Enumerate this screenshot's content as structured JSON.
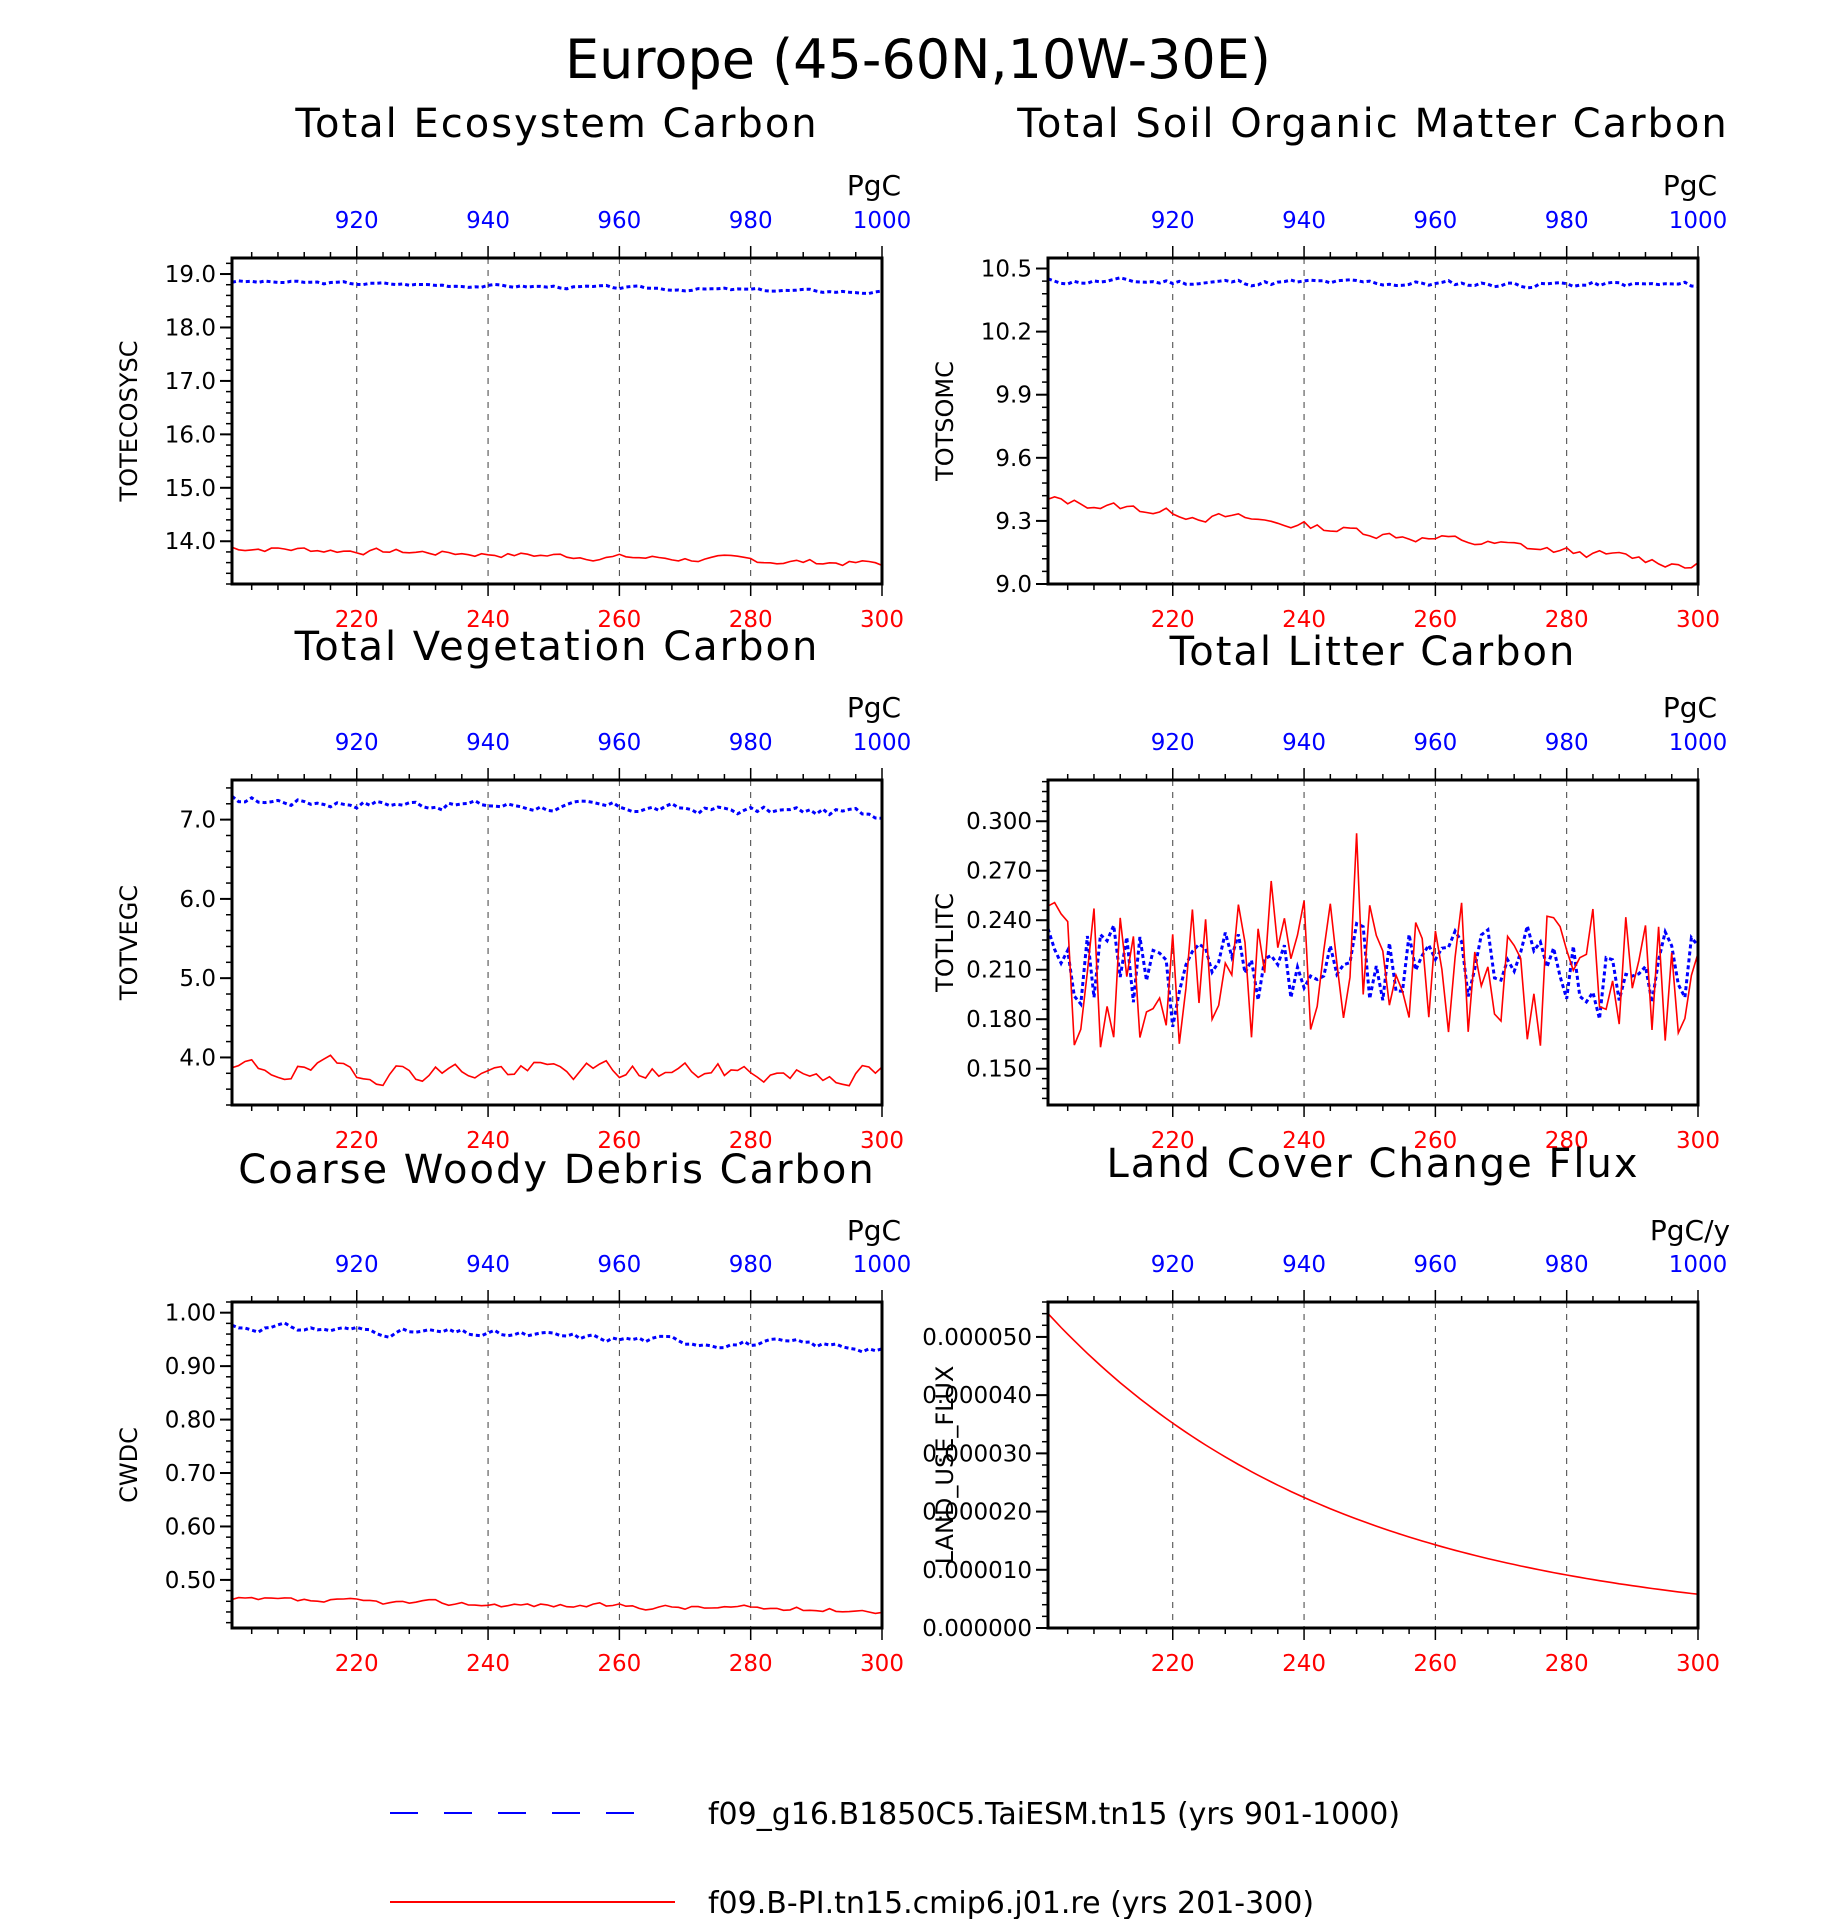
{
  "suptitle": "Europe (45-60N,10W-30E)",
  "colors": {
    "series_a": "#0000ff",
    "series_b": "#ff0000"
  },
  "legend": [
    {
      "label": "f09_g16.B1850C5.TaiESM.tn15 (yrs 901-1000)",
      "style": "dashed",
      "color": "#0000ff"
    },
    {
      "label": "f09.B-PI.tn15.cmip6.j01.re (yrs 201-300)",
      "style": "solid",
      "color": "#ff0000"
    }
  ],
  "chart_data": [
    {
      "type": "line",
      "title": "Total Ecosystem Carbon",
      "ylabel": "TOTECOSYSC",
      "unit": "PgC",
      "ylim": [
        13.2,
        19.3
      ],
      "yticks": [
        19.0,
        18.0,
        17.0,
        16.0,
        15.0,
        14.0
      ],
      "ytick_labels": [
        "19.0",
        "18.0",
        "17.0",
        "16.0",
        "15.0",
        "14.0"
      ],
      "bottom_xlim": [
        201,
        300
      ],
      "bottom_xticks": [
        220,
        240,
        260,
        280,
        300
      ],
      "top_xlim": [
        901,
        1000
      ],
      "top_xticks": [
        920,
        940,
        960,
        980,
        1000
      ],
      "series": [
        {
          "name": "f09_g16.B1850C5.TaiESM.tn15 (yrs 901-1000)",
          "axis": "top",
          "style": "dashed",
          "gen": {
            "kind": "trend",
            "start": 18.86,
            "end": 18.66,
            "amp": 0.06,
            "seed": 3
          }
        },
        {
          "name": "f09.B-PI.tn15.cmip6.j01.re (yrs 201-300)",
          "axis": "bottom",
          "style": "solid",
          "gen": {
            "kind": "trend",
            "start": 13.88,
            "end": 13.58,
            "amp": 0.12,
            "seed": 7
          }
        }
      ]
    },
    {
      "type": "line",
      "title": "Total Soil Organic Matter Carbon",
      "ylabel": "TOTSOMC",
      "unit": "PgC",
      "ylim": [
        9.0,
        10.55
      ],
      "yticks": [
        10.5,
        10.2,
        9.9,
        9.6,
        9.3,
        9.0
      ],
      "ytick_labels": [
        "10.5",
        "10.2",
        "9.9",
        "9.6",
        "9.3",
        "9.0"
      ],
      "bottom_xlim": [
        201,
        300
      ],
      "bottom_xticks": [
        220,
        240,
        260,
        280,
        300
      ],
      "top_xlim": [
        901,
        1000
      ],
      "top_xticks": [
        920,
        940,
        960,
        980,
        1000
      ],
      "series": [
        {
          "name": "f09_g16.B1850C5.TaiESM.tn15 (yrs 901-1000)",
          "axis": "top",
          "style": "dashed",
          "gen": {
            "kind": "trend",
            "start": 10.44,
            "end": 10.42,
            "amp": 0.03,
            "seed": 11
          }
        },
        {
          "name": "f09.B-PI.tn15.cmip6.j01.re (yrs 201-300)",
          "axis": "bottom",
          "style": "solid",
          "gen": {
            "kind": "trend",
            "start": 9.4,
            "end": 9.09,
            "amp": 0.045,
            "seed": 13
          }
        }
      ]
    },
    {
      "type": "line",
      "title": "Total Vegetation Carbon",
      "ylabel": "TOTVEGC",
      "unit": "PgC",
      "ylim": [
        3.4,
        7.5
      ],
      "yticks": [
        7.0,
        6.0,
        5.0,
        4.0
      ],
      "ytick_labels": [
        "7.0",
        "6.0",
        "5.0",
        "4.0"
      ],
      "bottom_xlim": [
        201,
        300
      ],
      "bottom_xticks": [
        220,
        240,
        260,
        280,
        300
      ],
      "top_xlim": [
        901,
        1000
      ],
      "top_xticks": [
        920,
        940,
        960,
        980,
        1000
      ],
      "series": [
        {
          "name": "f09_g16.B1850C5.TaiESM.tn15 (yrs 901-1000)",
          "axis": "top",
          "style": "dashed",
          "gen": {
            "kind": "trend",
            "start": 7.25,
            "end": 7.08,
            "amp": 0.12,
            "seed": 17
          }
        },
        {
          "name": "f09.B-PI.tn15.cmip6.j01.re (yrs 201-300)",
          "axis": "bottom",
          "style": "solid",
          "gen": {
            "kind": "trend",
            "start": 3.85,
            "end": 3.8,
            "amp": 0.25,
            "seed": 19
          }
        }
      ]
    },
    {
      "type": "line",
      "title": "Total Litter Carbon",
      "ylabel": "TOTLITC",
      "unit": "PgC",
      "ylim": [
        0.128,
        0.325
      ],
      "yticks": [
        0.3,
        0.27,
        0.24,
        0.21,
        0.18,
        0.15
      ],
      "ytick_labels": [
        "0.300",
        "0.270",
        "0.240",
        "0.210",
        "0.180",
        "0.150"
      ],
      "bottom_xlim": [
        201,
        300
      ],
      "bottom_xticks": [
        220,
        240,
        260,
        280,
        300
      ],
      "top_xlim": [
        901,
        1000
      ],
      "top_xticks": [
        920,
        940,
        960,
        980,
        1000
      ],
      "series": [
        {
          "name": "f09_g16.B1850C5.TaiESM.tn15 (yrs 901-1000)",
          "axis": "top",
          "style": "dashed",
          "gen": {
            "kind": "noisy",
            "mean": 0.213,
            "amp": 0.028,
            "seed": 23
          }
        },
        {
          "name": "f09.B-PI.tn15.cmip6.j01.re (yrs 201-300)",
          "axis": "bottom",
          "style": "solid",
          "gen": {
            "kind": "noisy",
            "mean": 0.208,
            "amp": 0.05,
            "seed": 29
          }
        }
      ]
    },
    {
      "type": "line",
      "title": "Coarse Woody Debris Carbon",
      "ylabel": "CWDC",
      "unit": "PgC",
      "ylim": [
        0.41,
        1.02
      ],
      "yticks": [
        1.0,
        0.9,
        0.8,
        0.7,
        0.6,
        0.5
      ],
      "ytick_labels": [
        "1.00",
        "0.90",
        "0.80",
        "0.70",
        "0.60",
        "0.50"
      ],
      "bottom_xlim": [
        201,
        300
      ],
      "bottom_xticks": [
        220,
        240,
        260,
        280,
        300
      ],
      "top_xlim": [
        901,
        1000
      ],
      "top_xticks": [
        920,
        940,
        960,
        980,
        1000
      ],
      "series": [
        {
          "name": "f09_g16.B1850C5.TaiESM.tn15 (yrs 901-1000)",
          "axis": "top",
          "style": "dashed",
          "gen": {
            "kind": "trend",
            "start": 0.975,
            "end": 0.935,
            "amp": 0.015,
            "seed": 31
          }
        },
        {
          "name": "f09.B-PI.tn15.cmip6.j01.re (yrs 201-300)",
          "axis": "bottom",
          "style": "solid",
          "gen": {
            "kind": "trend",
            "start": 0.462,
            "end": 0.443,
            "amp": 0.01,
            "seed": 37
          }
        }
      ]
    },
    {
      "type": "line",
      "title": "Land Cover Change Flux",
      "ylabel": "LAND_USE_FLUX",
      "unit": "PgC/y",
      "ylim": [
        0.0,
        5.6e-05
      ],
      "yticks": [
        5e-05,
        4e-05,
        3e-05,
        2e-05,
        1e-05,
        0.0
      ],
      "ytick_labels": [
        "0.000050",
        "0.000040",
        "0.000030",
        "0.000020",
        "0.000010",
        "0.000000"
      ],
      "bottom_xlim": [
        201,
        300
      ],
      "bottom_xticks": [
        220,
        240,
        260,
        280,
        300
      ],
      "top_xlim": [
        901,
        1000
      ],
      "top_xticks": [
        920,
        940,
        960,
        980,
        1000
      ],
      "series": [
        {
          "name": "f09.B-PI.tn15.cmip6.j01.re (yrs 201-300)",
          "axis": "bottom",
          "style": "solid",
          "gen": {
            "kind": "exp",
            "start": 5.4e-05,
            "end": 5.8e-06
          }
        }
      ]
    }
  ]
}
